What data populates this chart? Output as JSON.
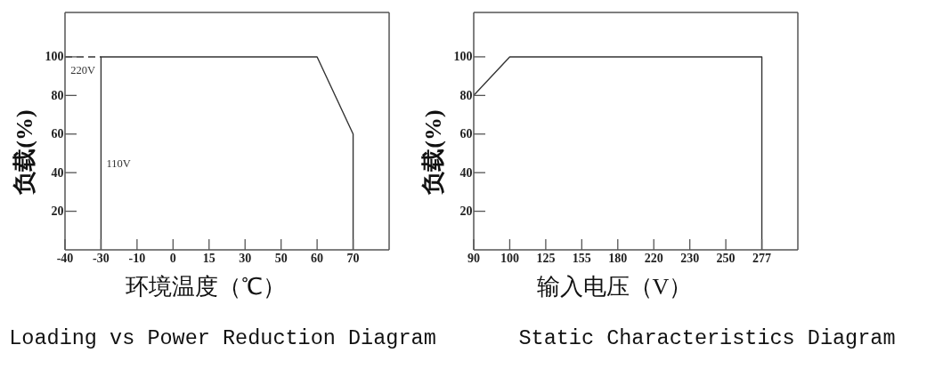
{
  "chart_data": [
    {
      "type": "line",
      "title": "Loading vs Power Reduction Diagram",
      "xlabel": "环境温度（℃）",
      "ylabel": "负载(%)",
      "categories": [
        "-40",
        "-30",
        "-10",
        "0",
        "15",
        "30",
        "50",
        "60",
        "70",
        null
      ],
      "series": [
        {
          "name": "110V",
          "x": [
            "-30",
            "-30",
            "60",
            "70",
            "70"
          ],
          "values": [
            0,
            100,
            100,
            60,
            0
          ],
          "color": "#333333"
        },
        {
          "name": "220V",
          "x": [
            "-40",
            "-30"
          ],
          "values": [
            100,
            100
          ],
          "color": "#333333",
          "line_style": "dashed"
        }
      ],
      "ylim": [
        0,
        123
      ],
      "yticks": [
        20,
        40,
        60,
        80,
        100
      ],
      "marker": "none"
    },
    {
      "type": "line",
      "title": "Static Characteristics Diagram",
      "xlabel": "输入电压（V）",
      "ylabel": "负载(%)",
      "categories": [
        "90",
        "100",
        "125",
        "155",
        "180",
        "220",
        "230",
        "250",
        "277",
        null
      ],
      "series": [
        {
          "x": [
            "90",
            "100",
            "277",
            "277"
          ],
          "values": [
            80,
            100,
            100,
            0
          ],
          "color": "#333333"
        }
      ],
      "ylim": [
        0,
        123
      ],
      "yticks": [
        20,
        40,
        60,
        80,
        100
      ],
      "marker": "none"
    }
  ]
}
